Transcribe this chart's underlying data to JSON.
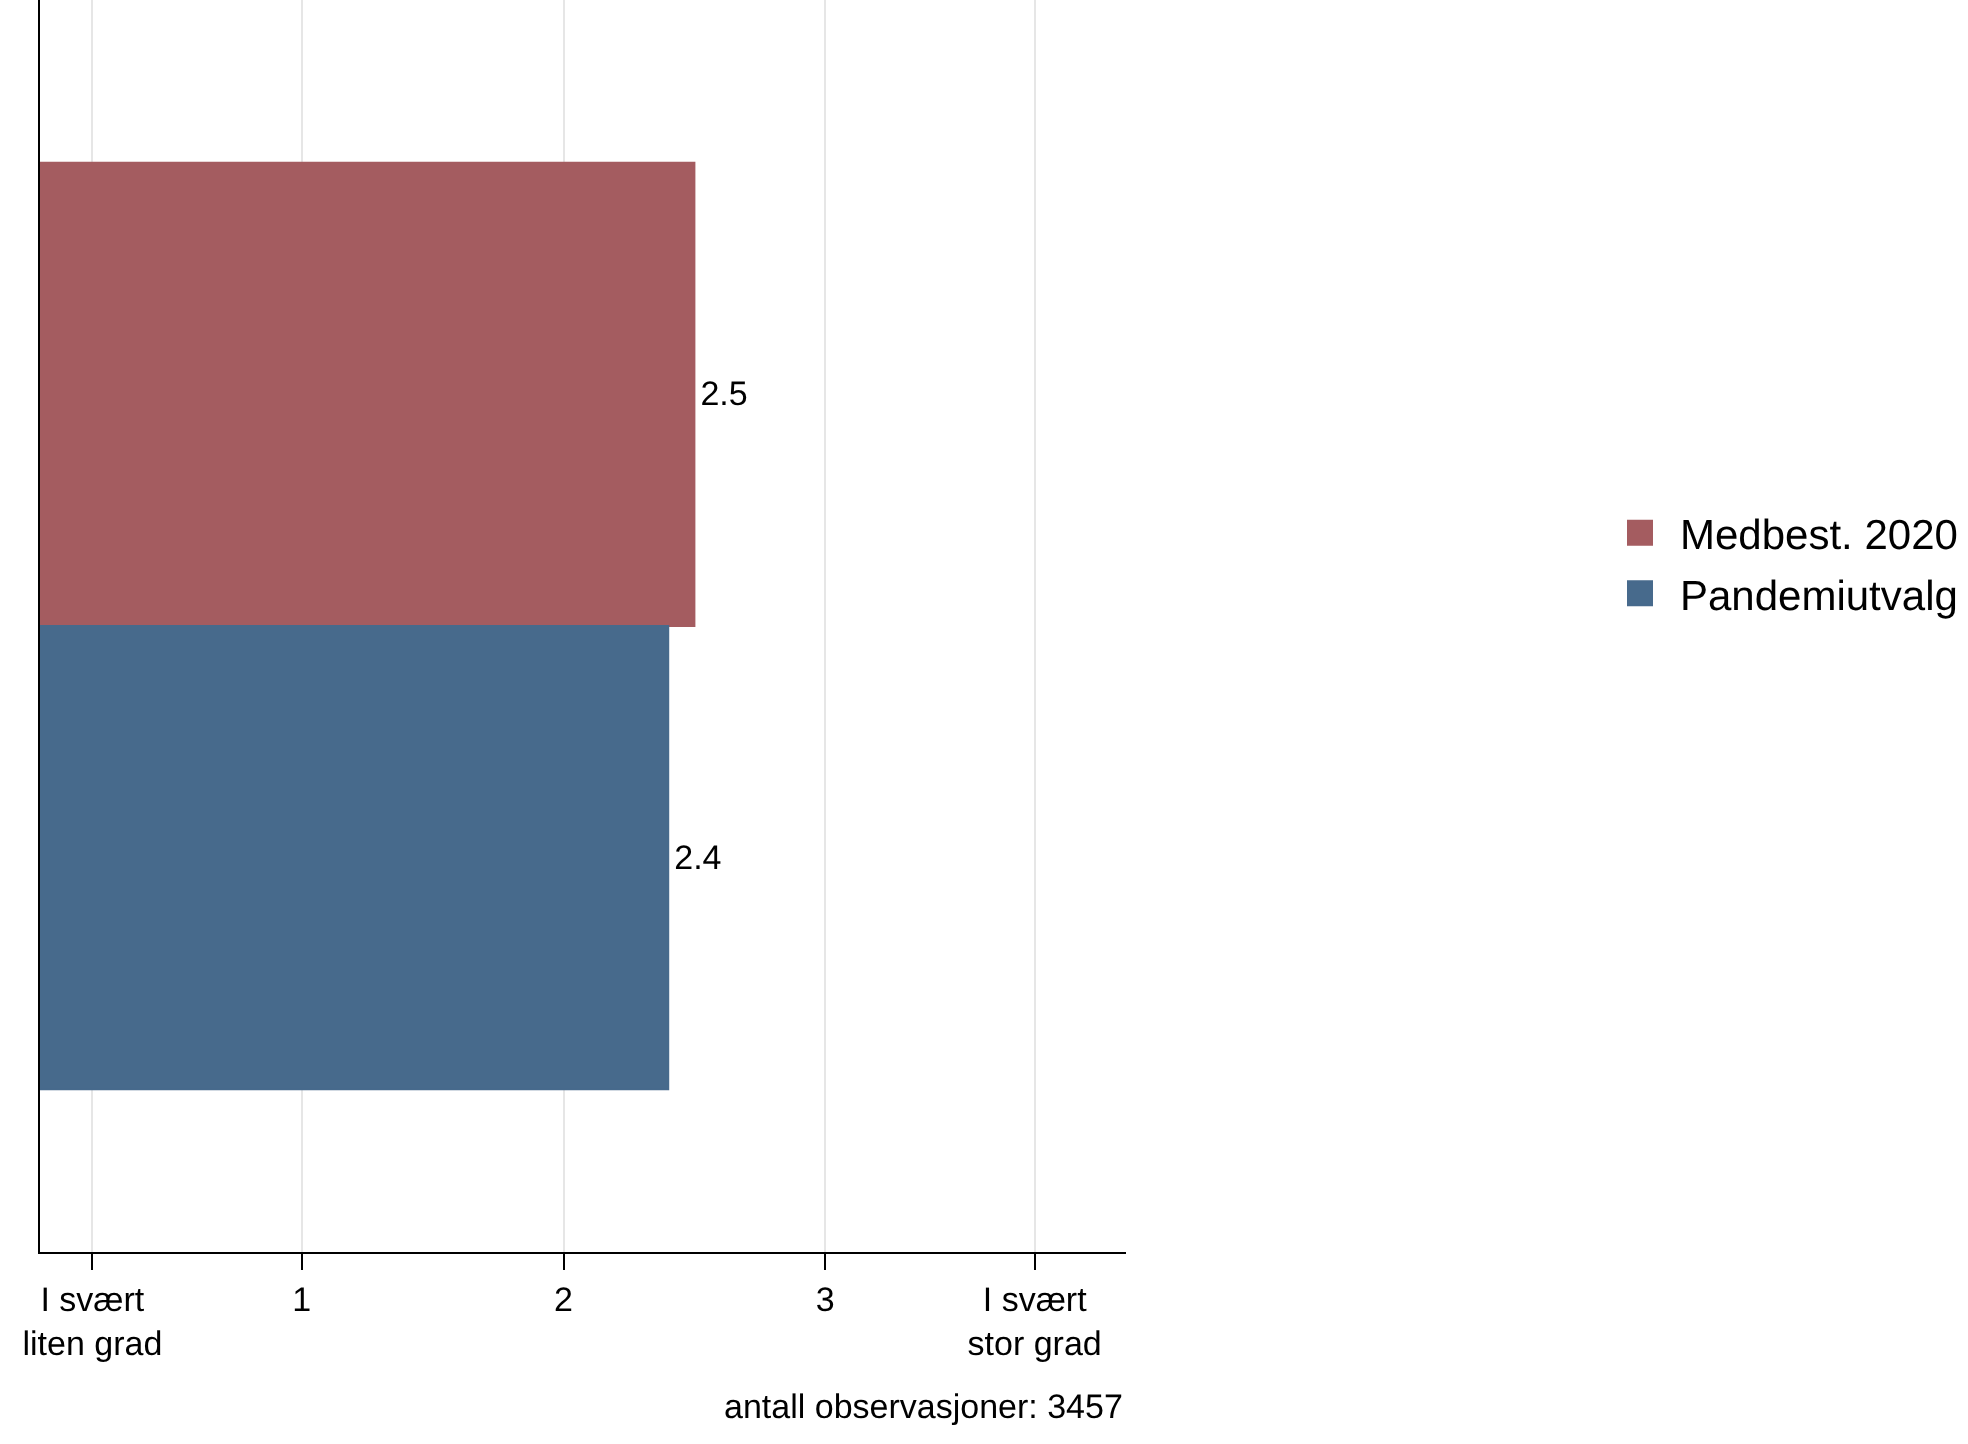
{
  "chart_data": {
    "type": "bar",
    "orientation": "horizontal",
    "categories": [
      null
    ],
    "series": [
      {
        "name": "Medbest. 2020",
        "color": "#a45c60",
        "values": [
          2.5
        ]
      },
      {
        "name": "Pandemiutvalg",
        "color": "#476a8c",
        "values": [
          2.4
        ]
      }
    ],
    "xlim": [
      0,
      4.15
    ],
    "xticks": [
      {
        "value": 0.2,
        "label": "I svært\nliten grad"
      },
      1,
      2,
      3,
      {
        "value": 3.8,
        "label": "I svært\nstor grad"
      }
    ],
    "grid": "x",
    "legend": "right",
    "data_labels": true,
    "annotations": [
      "antall observasjoner: 3457"
    ]
  }
}
